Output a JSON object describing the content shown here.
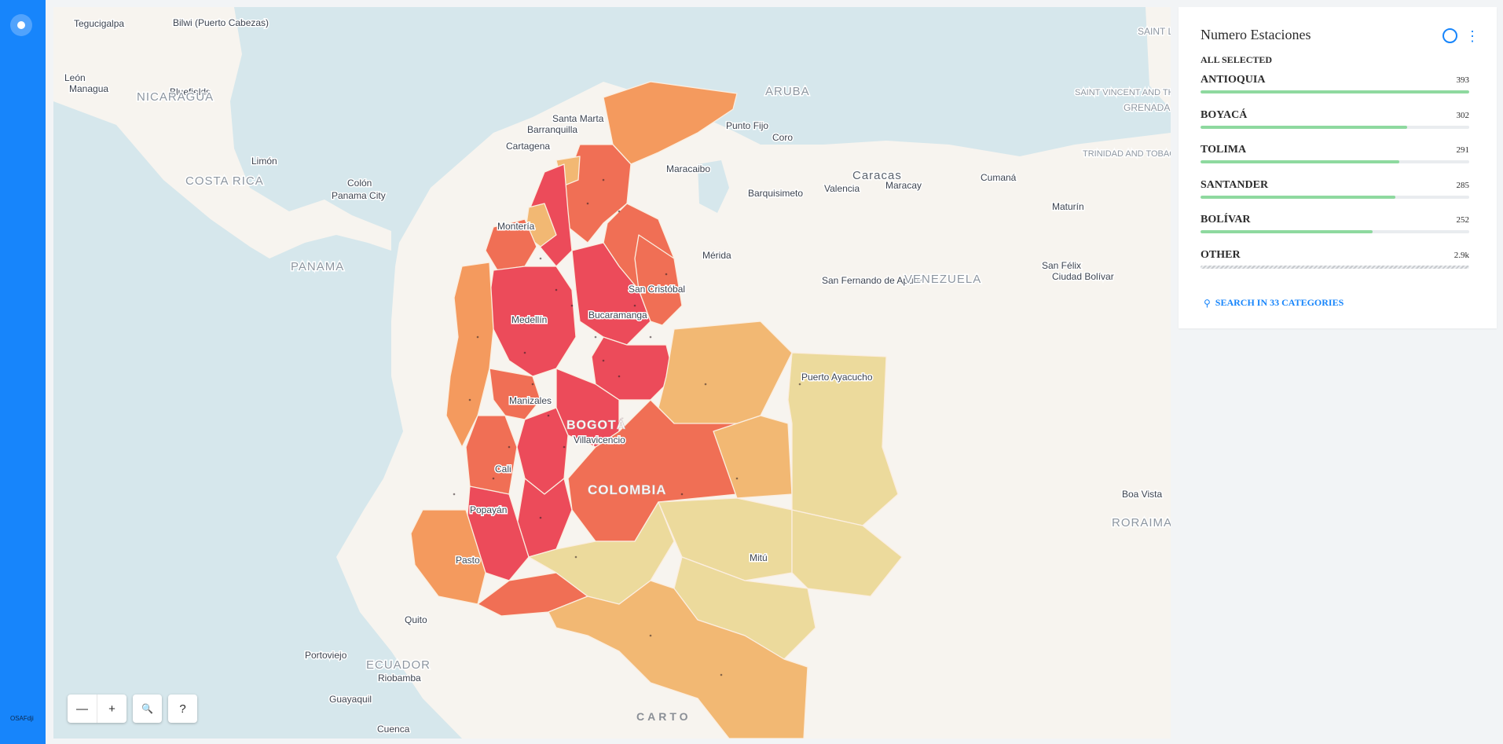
{
  "sidebar": {
    "logo_icon": "carto-logo-icon",
    "footer_text": "OSAFdji"
  },
  "map": {
    "attribution": "CARTO",
    "controls": {
      "zoom_out": "—",
      "zoom_in": "+",
      "search": "🔍",
      "help": "?"
    },
    "labels": {
      "cities": [
        "Tegucigalpa",
        "Bilwi (Puerto Cabezas)",
        "León",
        "Managua",
        "Bluefields",
        "Limón",
        "Colón",
        "Panama City",
        "Cartagena",
        "Barranquilla",
        "Santa Marta",
        "Montería",
        "Medellín",
        "Bucaramanga",
        "San Cristóbal",
        "Manizales",
        "Villavicencio",
        "Cali",
        "Popayán",
        "Pasto",
        "Quito",
        "Portoviejo",
        "Riobamba",
        "Guayaquil",
        "Cuenca",
        "Punto Fijo",
        "Coro",
        "Maracaibo",
        "Barquisimeto",
        "Valencia",
        "Maracay",
        "Caracas",
        "Cumaná",
        "Maturín",
        "Mérida",
        "San Fernando de Apure",
        "Puerto Ayacucho",
        "San Félix",
        "Ciudad Bolívar",
        "Mitú",
        "Boa Vista"
      ],
      "countries": [
        "NICARAGUA",
        "COSTA RICA",
        "PANAMA",
        "ARUBA",
        "VENEZUELA",
        "ECUADOR",
        "RORAIMA",
        "SAINT LUCIA",
        "SAINT VINCENT AND THE GRENADINES",
        "GRENADA",
        "TRINIDAD AND TOBAGO"
      ],
      "capital": "BOGOTÁ",
      "focus_country": "COLOMBIA"
    },
    "colors": {
      "water": "#d6e7ec",
      "land": "#f7f4ef",
      "high": "#ec4b5a",
      "mid_high": "#f06f55",
      "mid": "#f49a5e",
      "mid_low": "#f2b873",
      "low": "#ecda9c"
    }
  },
  "widget": {
    "title": "Numero Estaciones",
    "status": "ALL SELECTED",
    "categories": [
      {
        "name": "ANTIOQUIA",
        "value": "393",
        "fraction": 1.0
      },
      {
        "name": "BOYACÁ",
        "value": "302",
        "fraction": 0.768
      },
      {
        "name": "TOLIMA",
        "value": "291",
        "fraction": 0.74
      },
      {
        "name": "SANTANDER",
        "value": "285",
        "fraction": 0.725
      },
      {
        "name": "BOLÍVAR",
        "value": "252",
        "fraction": 0.641
      },
      {
        "name": "OTHER",
        "value": "2.9k",
        "fraction": 1.0
      }
    ],
    "search_label": "SEARCH IN 33 CATEGORIES",
    "accent": "#1785fb",
    "bar_color": "#8ed99f"
  }
}
